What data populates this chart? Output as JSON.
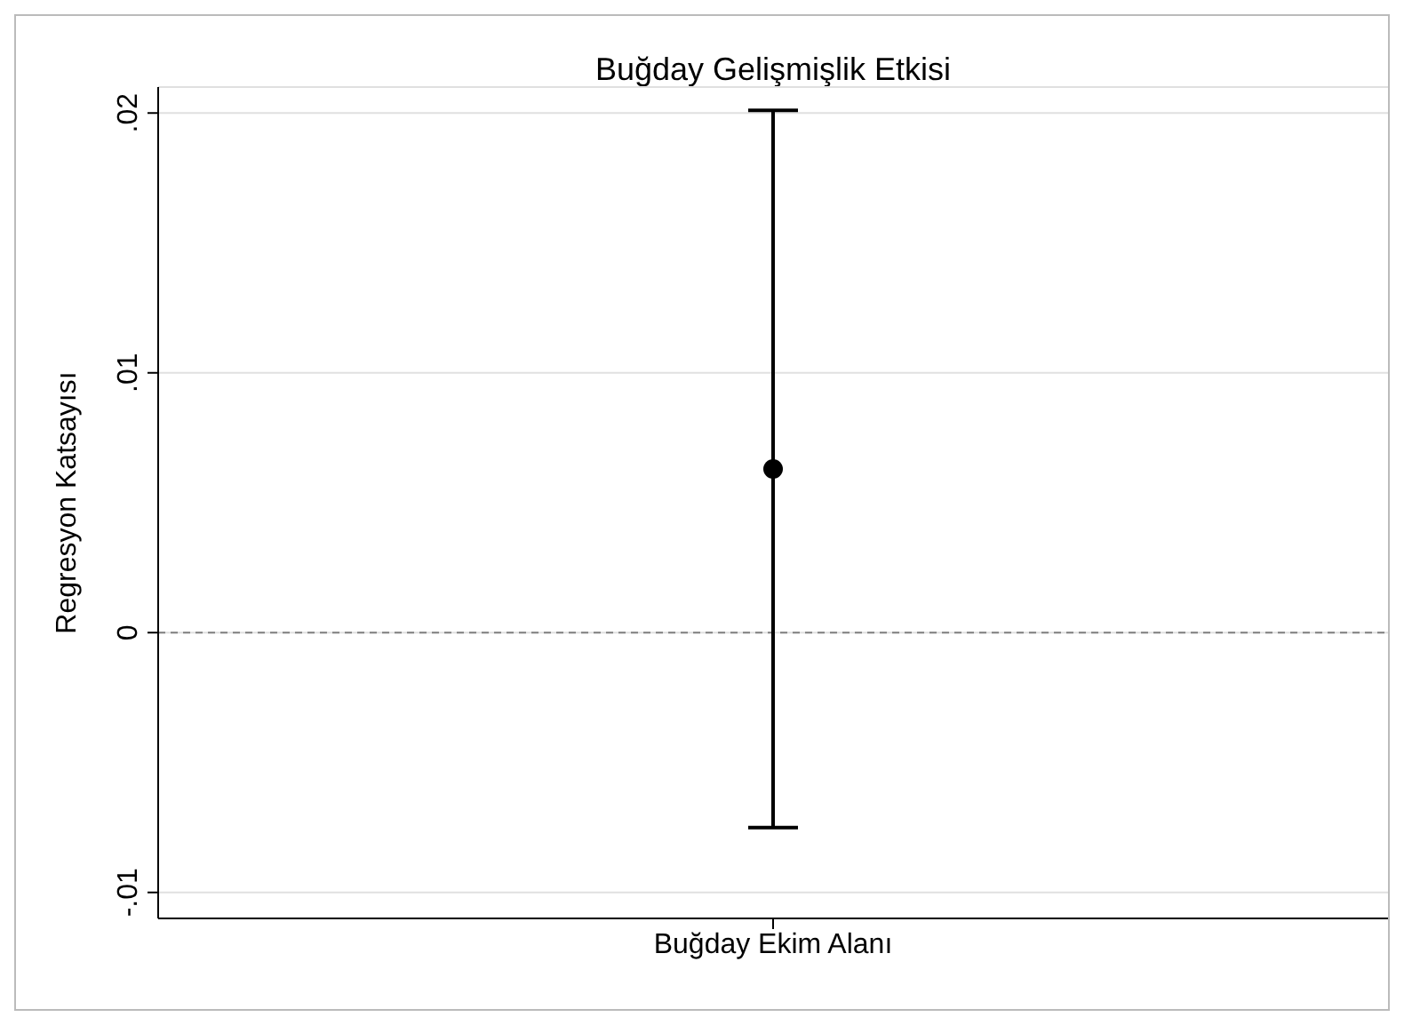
{
  "chart_data": {
    "type": "scatter",
    "title": "Buğday Gelişmişlik Etkisi",
    "ylabel": "Regresyon Katsayısı",
    "categories": [
      "Buğday Ekim Alanı"
    ],
    "series": [
      {
        "color": "#000000",
        "values": [
          0.0063
        ],
        "errors": [
          [
            -0.0075,
            0.0201
          ]
        ]
      }
    ],
    "ylim": [
      -0.011,
      0.021
    ],
    "yticks": [
      {
        "value": -0.01,
        "label": "-.01"
      },
      0,
      {
        "value": 0.01,
        "label": ".01"
      },
      {
        "value": 0.02,
        "label": ".02"
      }
    ],
    "ref_lines": [
      {
        "axis": "y",
        "value": 0,
        "color": "#808080",
        "line_style": "dashed"
      }
    ],
    "grid": "y",
    "marker": "circle"
  }
}
